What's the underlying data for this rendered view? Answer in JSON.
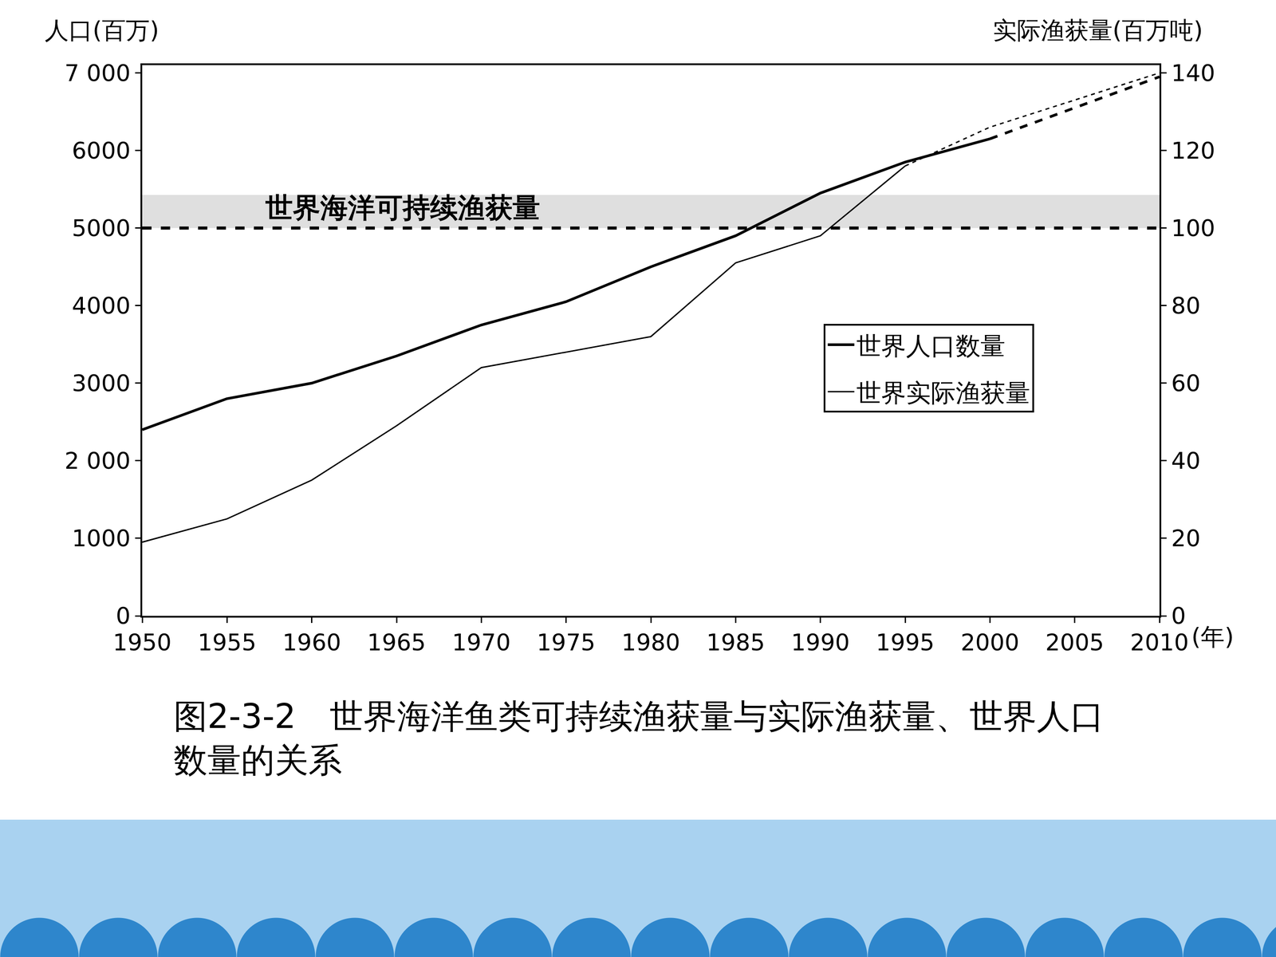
{
  "chart_data": {
    "type": "line",
    "title": "图2-3-2　世界海洋鱼类可持续渔获量与实际渔获量、世界人口数量的关系",
    "y_label": "人口(百万)",
    "y2_label": "实际渔获量(百万吨)",
    "x_label": "(年)",
    "x": [
      1950,
      1955,
      1960,
      1965,
      1970,
      1975,
      1980,
      1985,
      1990,
      1995,
      2000,
      2005,
      2010
    ],
    "series": [
      {
        "name": "世界人口数量",
        "color": "#000000",
        "line_style": "solid",
        "axis": "y",
        "values": [
          2400,
          2800,
          3000,
          3350,
          3750,
          4050,
          4500,
          4900,
          5450,
          5850,
          6150,
          null,
          null
        ]
      },
      {
        "name": "世界人口数量",
        "color": "#000000",
        "line_style": "dash",
        "axis": "y",
        "values": [
          null,
          null,
          null,
          null,
          null,
          null,
          null,
          null,
          null,
          null,
          6150,
          6550,
          6950
        ]
      },
      {
        "name": "世界实际渔获量",
        "color": "#000000",
        "line_style": "solid",
        "axis": "y2",
        "values": [
          19,
          25,
          35,
          49,
          64,
          68,
          72,
          91,
          98,
          116,
          null,
          null,
          null
        ]
      },
      {
        "name": "世界实际渔获量",
        "color": "#000000",
        "line_style": "dash",
        "axis": "y2",
        "values": [
          null,
          null,
          null,
          null,
          null,
          null,
          null,
          null,
          null,
          116,
          126,
          133,
          140
        ]
      }
    ],
    "hlines": [
      {
        "value": 100,
        "axis": "y2",
        "label": "世界海洋可持续渔获量",
        "line_style": "dash",
        "color": "#000000"
      }
    ],
    "xlim": [
      1950,
      2010
    ],
    "xticks": [
      1950,
      1955,
      1960,
      1965,
      1970,
      1975,
      1980,
      1985,
      1990,
      1995,
      2000,
      2005,
      2010
    ],
    "ylim": [
      0,
      7100
    ],
    "yticks": [
      0,
      1000,
      {
        "value": 2000,
        "label": "2 000"
      },
      3000,
      4000,
      5000,
      6000,
      {
        "value": 7000,
        "label": "7 000"
      }
    ],
    "y2lim": [
      0,
      142
    ],
    "y2ticks": [
      0,
      20,
      40,
      60,
      80,
      100,
      120,
      140
    ],
    "grid": false,
    "legend": "right"
  }
}
